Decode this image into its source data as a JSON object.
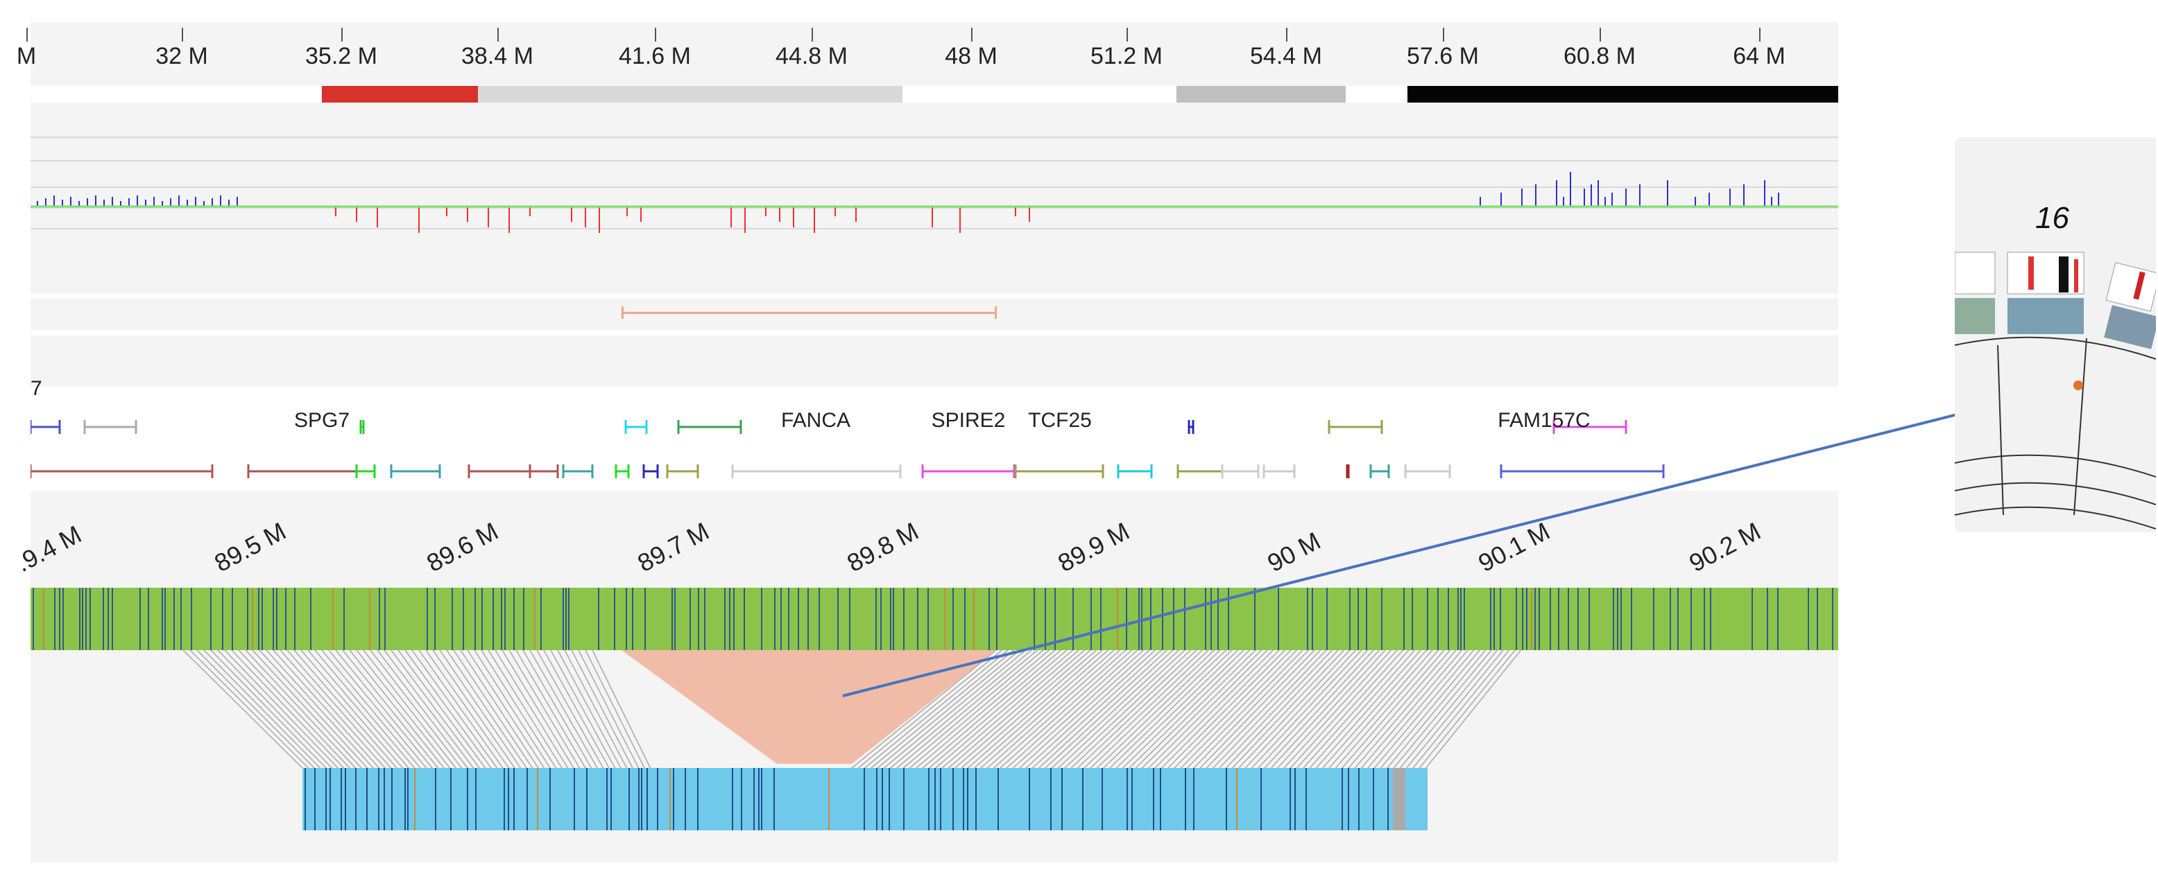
{
  "top_axis": {
    "ticks": [
      "M",
      "32 M",
      "35.2 M",
      "38.4 M",
      "41.6 M",
      "44.8 M",
      "48 M",
      "51.2 M",
      "54.4 M",
      "57.6 M",
      "60.8 M",
      "64 M"
    ]
  },
  "genes": {
    "labels": [
      "7",
      "SPG7",
      "FANCA",
      "SPIRE2",
      "TCF25",
      "FAM157C"
    ]
  },
  "zoom_axis": {
    "ticks": [
      ".9.4 M",
      "89.5 M",
      "89.6 M",
      "89.7 M",
      "89.8 M",
      "89.9 M",
      "90 M",
      "90.1 M",
      "90.2 M"
    ]
  },
  "inset": {
    "chromosome_label": "16"
  },
  "colors": {
    "cytoband_red": "#d7332a",
    "cytoband_gray": "#d9d9d9",
    "cytoband_darkgray": "#bfbfbf",
    "cytoband_black": "#050505",
    "coverage_line": "#7ee26a",
    "gain_bars": "#2b2fd6",
    "loss_bars": "#ff2a2a",
    "deletion_span": "#f3a589",
    "ref_track": "#8cc34b",
    "query_track": "#6ec9eb",
    "deletion_wedge": "#f1bca7",
    "arrow": "#4a73be",
    "marker_dot": "#e8712e"
  }
}
